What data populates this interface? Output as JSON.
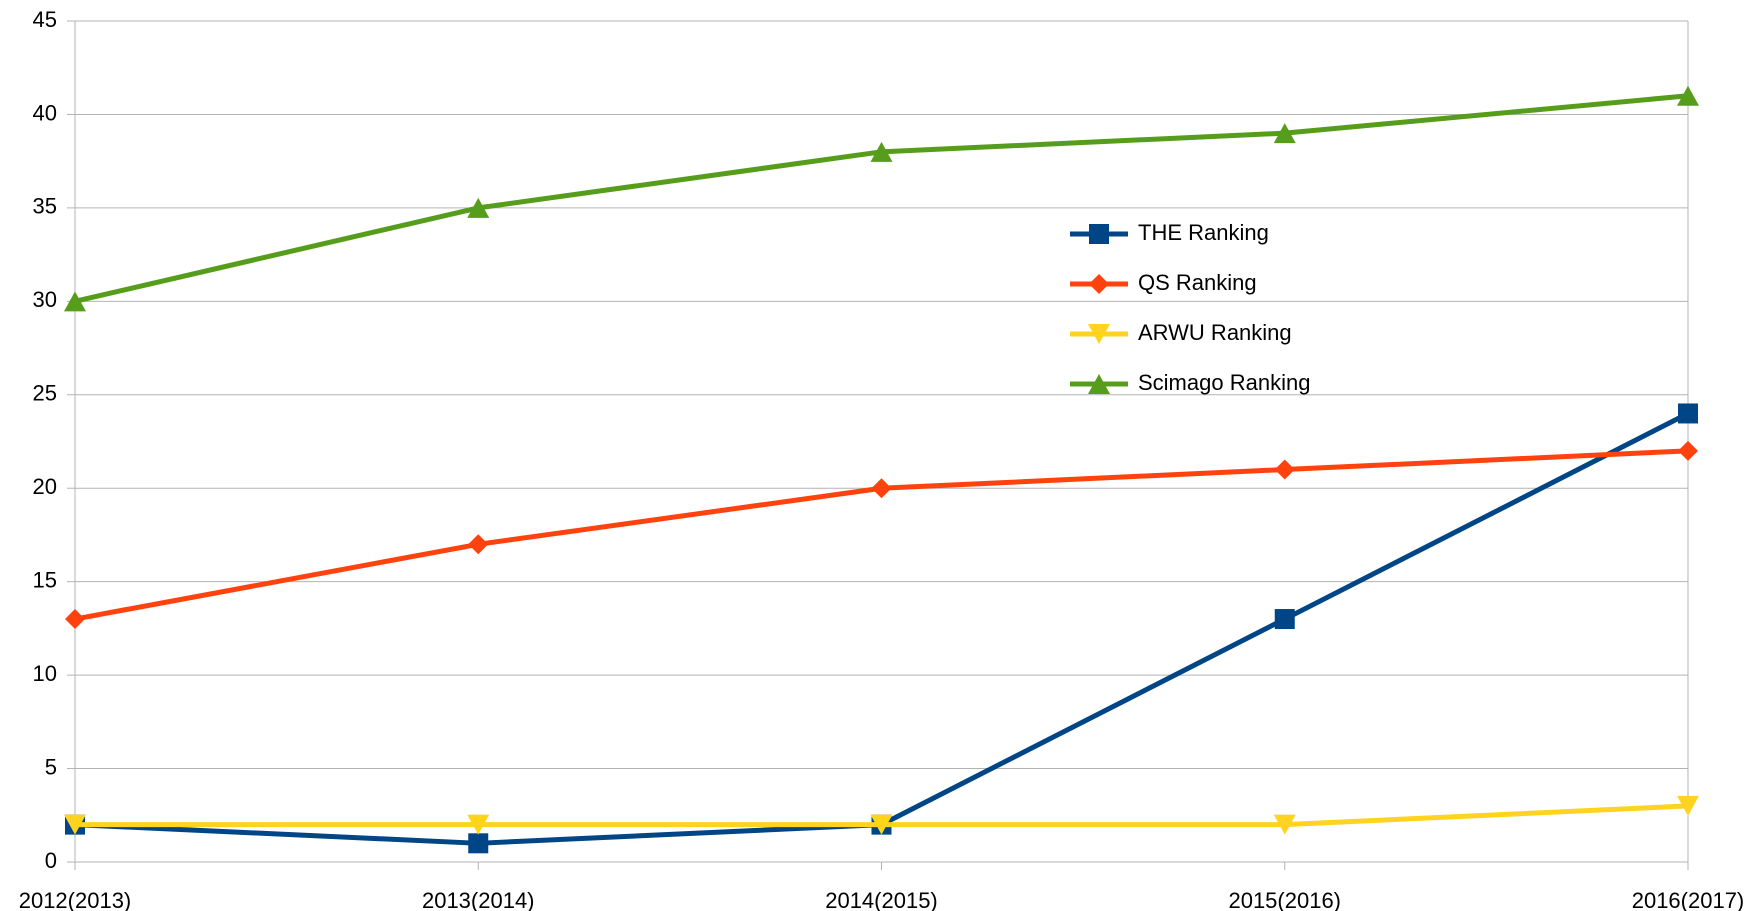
{
  "chart_data": {
    "type": "line",
    "categories": [
      "2012(2013)",
      "2013(2014)",
      "2014(2015)",
      "2015(2016)",
      "2016(2017)"
    ],
    "series": [
      {
        "name": "THE Ranking",
        "color": "#004586",
        "marker": "square",
        "values": [
          2,
          1,
          2,
          13,
          24
        ]
      },
      {
        "name": "QS Ranking",
        "color": "#ff420e",
        "marker": "diamond",
        "values": [
          13,
          17,
          20,
          21,
          22
        ]
      },
      {
        "name": "ARWU Ranking",
        "color": "#ffd320",
        "marker": "triangle-down",
        "values": [
          2,
          2,
          2,
          2,
          3
        ]
      },
      {
        "name": "Scimago Ranking",
        "color": "#579d1c",
        "marker": "triangle-up",
        "values": [
          30,
          35,
          38,
          39,
          41
        ]
      }
    ],
    "ylim": [
      0,
      45
    ],
    "yticks": [
      0,
      5,
      10,
      15,
      20,
      25,
      30,
      35,
      40,
      45
    ],
    "grid": true
  }
}
